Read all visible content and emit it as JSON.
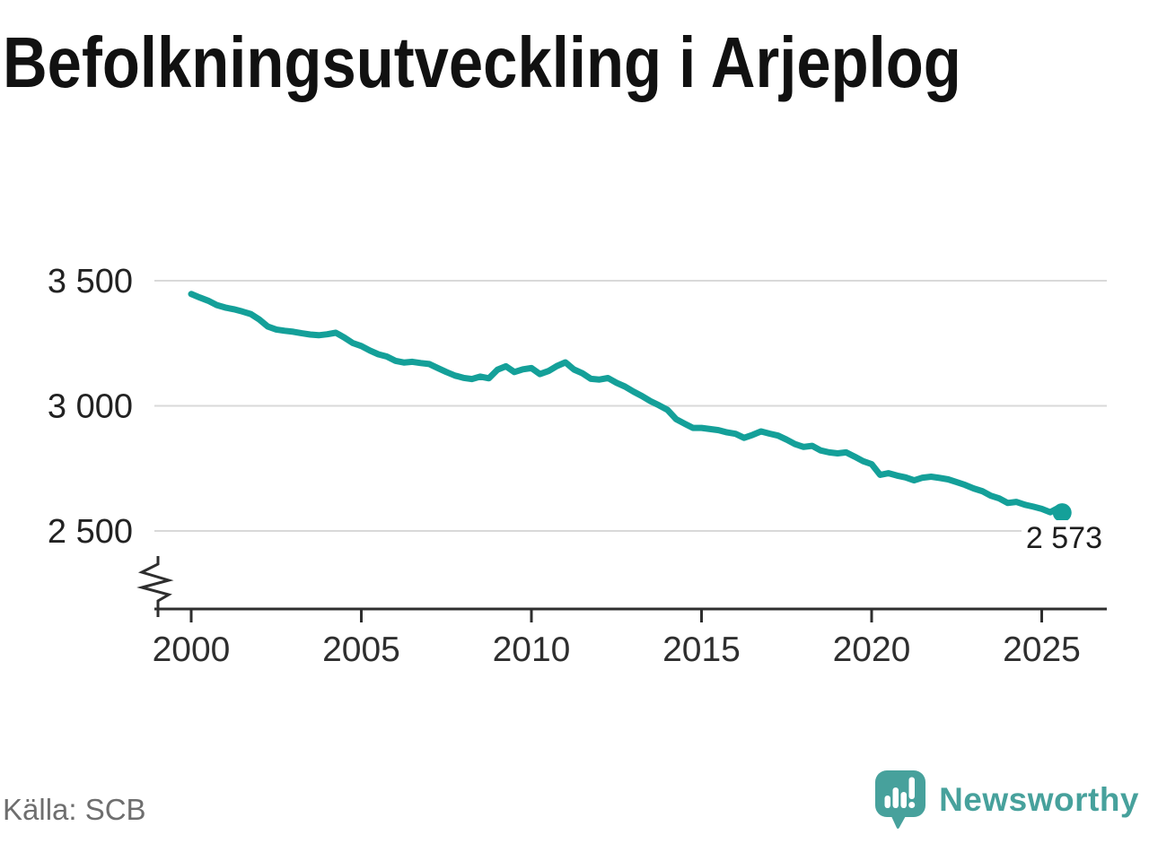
{
  "title": "Befolkningsutveckling i Arjeplog",
  "source": {
    "label": "Källa: SCB"
  },
  "branding": {
    "name": "Newsworthy",
    "color": "#47a19c",
    "icon": "newsworthy-speech-bubble-bar-chart-icon"
  },
  "chart_data": {
    "type": "line",
    "title": "Befolkningsutveckling i Arjeplog",
    "xlabel": "",
    "ylabel": "",
    "grid": true,
    "axis_break_bottom_left": true,
    "line_color": "#14a099",
    "grid_color": "#d9d9d9",
    "axis_color": "#2e2e2e",
    "xlim": [
      1998.9,
      2026.9
    ],
    "ylim": [
      2500,
      3500
    ],
    "xticks": {
      "values": [
        2000,
        2005,
        2010,
        2015,
        2020,
        2025
      ],
      "labels": [
        "2000",
        "2005",
        "2010",
        "2015",
        "2020",
        "2025"
      ]
    },
    "yticks": {
      "values": [
        3500,
        3000,
        2500
      ],
      "labels": [
        "3 500",
        "3 000",
        "2 500"
      ]
    },
    "x": [
      2000.0,
      2000.25,
      2000.5,
      2000.75,
      2001.0,
      2001.25,
      2001.5,
      2001.75,
      2002.0,
      2002.25,
      2002.5,
      2002.75,
      2003.0,
      2003.25,
      2003.5,
      2003.75,
      2004.0,
      2004.25,
      2004.5,
      2004.75,
      2005.0,
      2005.25,
      2005.5,
      2005.75,
      2006.0,
      2006.25,
      2006.5,
      2006.75,
      2007.0,
      2007.25,
      2007.5,
      2007.75,
      2008.0,
      2008.25,
      2008.5,
      2008.75,
      2009.0,
      2009.25,
      2009.5,
      2009.75,
      2010.0,
      2010.25,
      2010.5,
      2010.75,
      2011.0,
      2011.25,
      2011.5,
      2011.75,
      2012.0,
      2012.25,
      2012.5,
      2012.75,
      2013.0,
      2013.25,
      2013.5,
      2013.75,
      2014.0,
      2014.25,
      2014.5,
      2014.75,
      2015.0,
      2015.25,
      2015.5,
      2015.75,
      2016.0,
      2016.25,
      2016.5,
      2016.75,
      2017.0,
      2017.25,
      2017.5,
      2017.75,
      2018.0,
      2018.25,
      2018.5,
      2018.75,
      2019.0,
      2019.25,
      2019.5,
      2019.75,
      2020.0,
      2020.25,
      2020.5,
      2020.75,
      2021.0,
      2021.25,
      2021.5,
      2021.75,
      2022.0,
      2022.25,
      2022.5,
      2022.75,
      2023.0,
      2023.25,
      2023.5,
      2023.75,
      2024.0,
      2024.25,
      2024.5,
      2024.75,
      2025.0,
      2025.25,
      2025.5,
      2025.6
    ],
    "y": [
      3447,
      3433,
      3420,
      3403,
      3393,
      3386,
      3377,
      3367,
      3345,
      3317,
      3305,
      3300,
      3296,
      3290,
      3285,
      3282,
      3286,
      3292,
      3273,
      3251,
      3239,
      3221,
      3206,
      3197,
      3180,
      3173,
      3176,
      3171,
      3167,
      3151,
      3135,
      3121,
      3112,
      3107,
      3117,
      3110,
      3144,
      3158,
      3135,
      3146,
      3151,
      3127,
      3139,
      3159,
      3174,
      3145,
      3130,
      3108,
      3105,
      3111,
      3092,
      3077,
      3057,
      3039,
      3019,
      3002,
      2984,
      2947,
      2929,
      2912,
      2912,
      2907,
      2903,
      2894,
      2888,
      2872,
      2884,
      2898,
      2889,
      2881,
      2865,
      2847,
      2836,
      2840,
      2822,
      2814,
      2810,
      2814,
      2797,
      2779,
      2767,
      2724,
      2731,
      2721,
      2714,
      2702,
      2713,
      2717,
      2712,
      2706,
      2695,
      2684,
      2670,
      2659,
      2641,
      2630,
      2612,
      2616,
      2605,
      2597,
      2588,
      2575,
      2593,
      2573
    ],
    "end_point": {
      "x": 2025.6,
      "y": 2573,
      "label": "2 573"
    }
  }
}
